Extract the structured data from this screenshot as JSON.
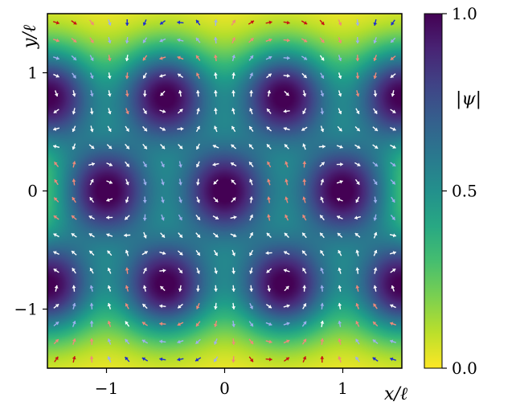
{
  "chart_data": {
    "type": "heatmap",
    "title": "",
    "xlabel": "x/ℓ",
    "ylabel": "y/ℓ",
    "xlim": [
      -1.5,
      1.5
    ],
    "ylim": [
      -1.5,
      1.5
    ],
    "xticks": [
      -1,
      0,
      1
    ],
    "yticks": [
      -1,
      0,
      1
    ],
    "xtick_labels": [
      "−1",
      "0",
      "1"
    ],
    "ytick_labels": [
      "−1",
      "0",
      "1"
    ],
    "colorbar": {
      "label": "|ψ|",
      "range": [
        0.0,
        1.0
      ],
      "ticks": [
        0.0,
        0.5,
        1.0
      ],
      "tick_labels": [
        "0.0",
        "0.5",
        "1.0"
      ],
      "colormap": "viridis_r",
      "position": "right"
    },
    "density_maxima": [
      [
        -1.5,
        0.8
      ],
      [
        -0.5,
        0.8
      ],
      [
        0.5,
        0.8
      ],
      [
        1.5,
        0.8
      ],
      [
        -1.0,
        0.0
      ],
      [
        0.0,
        0.0
      ],
      [
        1.0,
        0.0
      ],
      [
        -1.5,
        -0.8
      ],
      [
        -0.5,
        -0.8
      ],
      [
        0.5,
        -0.8
      ],
      [
        1.5,
        -0.8
      ]
    ],
    "overlay": "quiver of unit arrows colored by vorticity (red / salmon / white / light-blue / blue)",
    "quiver_colors": [
      "#c80f14",
      "#f08a7a",
      "#ffffff",
      "#9fb0ee",
      "#1a2ad0"
    ],
    "grid": false
  }
}
